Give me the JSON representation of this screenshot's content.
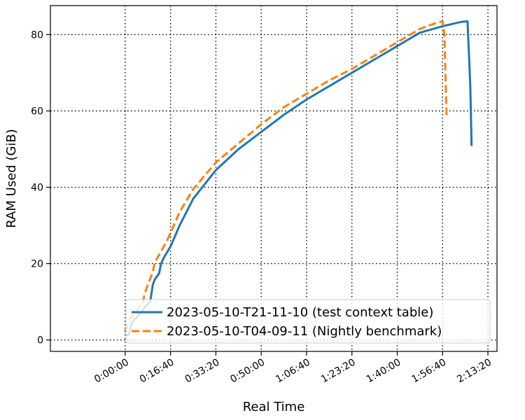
{
  "chart_data": {
    "type": "line",
    "title": "",
    "xlabel": "Real Time",
    "ylabel": "RAM Used (GiB)",
    "x_unit": "seconds",
    "xlim": [
      -1650,
      8200
    ],
    "ylim": [
      -3,
      87.6
    ],
    "x_ticks": [
      0,
      1000,
      2000,
      3000,
      4000,
      5000,
      6000,
      7000,
      8000
    ],
    "x_tick_labels": [
      "0:00:00",
      "0:16:40",
      "0:33:20",
      "0:50:00",
      "1:06:40",
      "1:23:20",
      "1:40:00",
      "1:56:40",
      "2:13:20"
    ],
    "y_ticks": [
      0,
      20,
      40,
      60,
      80
    ],
    "y_tick_labels": [
      "0",
      "20",
      "40",
      "60",
      "80"
    ],
    "grid": true,
    "legend_position": "lower-right",
    "series": [
      {
        "name": "2023-05-10-T21-11-10 (test context table)",
        "color": "#1f77b4",
        "style": "solid",
        "x": [
          0,
          80,
          150,
          250,
          350,
          450,
          550,
          610,
          650,
          750,
          790,
          850,
          1000,
          1200,
          1500,
          2000,
          2500,
          3000,
          3500,
          4000,
          4500,
          5000,
          5500,
          6000,
          6500,
          7000,
          7400,
          7550,
          7610,
          7640
        ],
        "y": [
          1.3,
          1.3,
          4.8,
          5.8,
          7.3,
          8.8,
          10,
          14.5,
          15.8,
          17.5,
          20,
          21.5,
          24.5,
          30,
          37,
          44.5,
          50,
          54.5,
          59,
          63,
          66.5,
          70,
          73.5,
          77,
          80.5,
          82.2,
          83.3,
          83.5,
          67,
          50.8
        ]
      },
      {
        "name": "2023-05-10-T04-09-11 (Nightly benchmark)",
        "color": "#ff7f0e",
        "style": "dashed",
        "x": [
          0,
          100,
          250,
          380,
          420,
          470,
          600,
          650,
          700,
          900,
          1000,
          1200,
          1500,
          2000,
          2500,
          3000,
          3500,
          4000,
          4500,
          5000,
          5500,
          6000,
          6500,
          6800,
          7000,
          7040,
          7070,
          7090
        ],
        "y": [
          2.3,
          5.5,
          7.5,
          9.5,
          11.5,
          13.5,
          17.5,
          20,
          21.3,
          25.5,
          28,
          33.5,
          39.5,
          46.5,
          51.5,
          56.5,
          61,
          64.5,
          68,
          71,
          74.5,
          78,
          81.5,
          82.8,
          83.5,
          80,
          67,
          58
        ]
      }
    ]
  }
}
